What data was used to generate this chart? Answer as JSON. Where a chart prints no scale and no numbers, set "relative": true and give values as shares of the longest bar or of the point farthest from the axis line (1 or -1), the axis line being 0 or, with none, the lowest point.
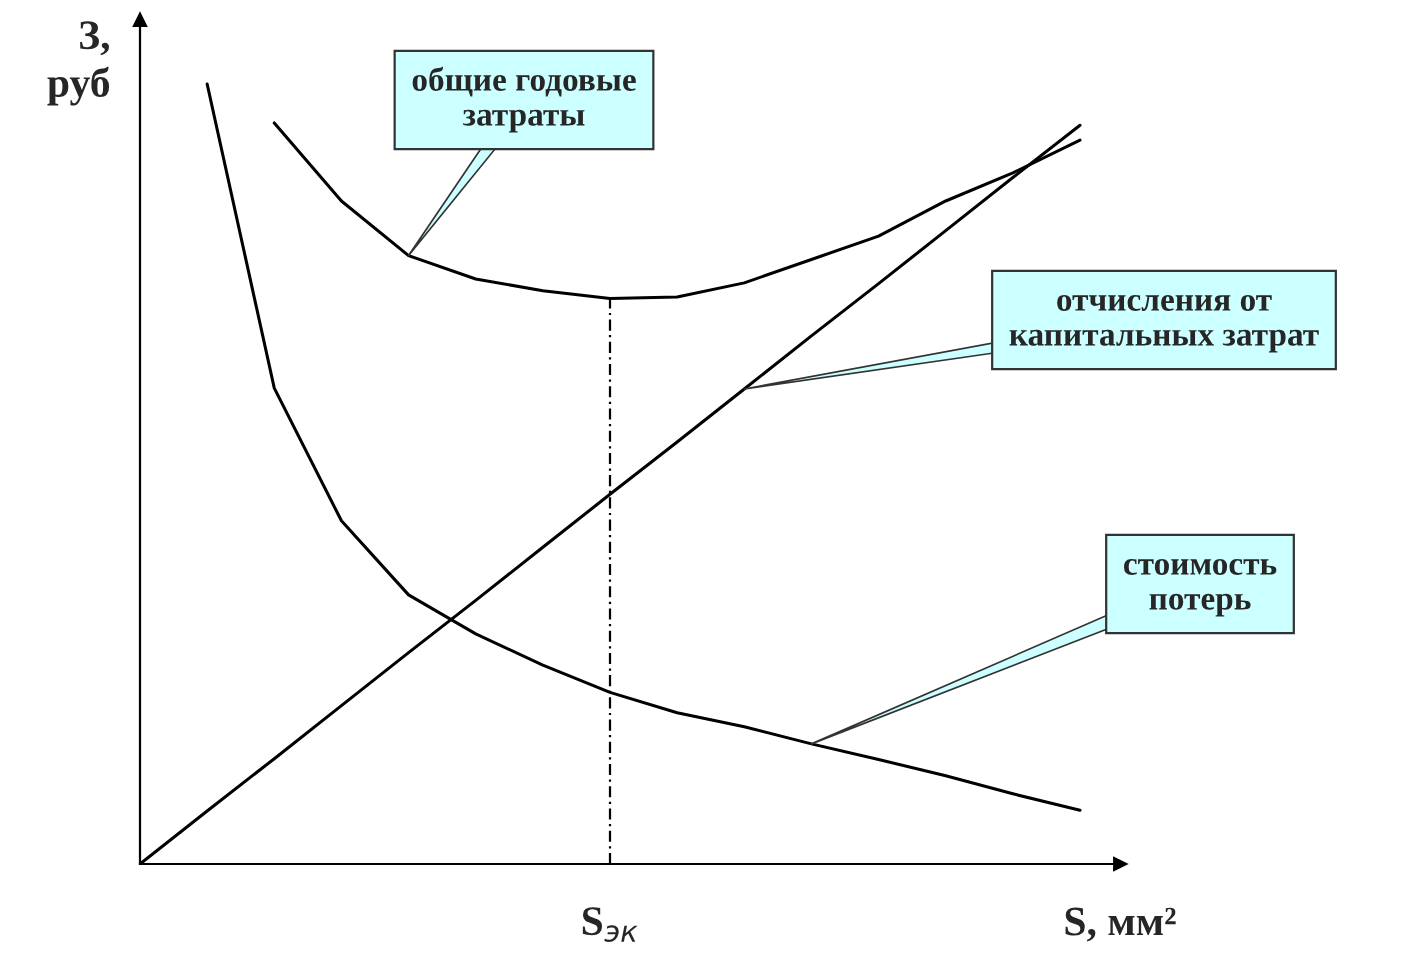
{
  "chart_data": {
    "type": "line",
    "relative": true,
    "xlabel": "S, мм²",
    "ylabel": "З,\nруб",
    "marker": "none",
    "line_style": "solid",
    "categories": [
      null,
      null,
      null,
      null,
      null,
      null,
      null,
      null,
      null,
      null,
      null,
      null,
      null,
      null,
      null
    ],
    "series": [
      {
        "color": "#000000",
        "values": [
          null,
          1.0,
          0.61,
          0.44,
          0.345,
          0.295,
          0.255,
          0.22,
          0.194,
          0.176,
          0.154,
          0.134,
          0.113,
          0.09,
          0.069
        ]
      },
      {
        "color": "#000000",
        "values": [
          0,
          0.068,
          0.135,
          0.203,
          0.271,
          0.338,
          0.406,
          0.474,
          0.541,
          0.609,
          0.677,
          0.744,
          0.812,
          0.88,
          0.947
        ]
      },
      {
        "color": "#000000",
        "values": [
          null,
          null,
          0.95,
          0.85,
          0.78,
          0.75,
          0.735,
          0.725,
          0.727,
          0.745,
          0.775,
          0.805,
          0.85,
          0.886,
          0.928
        ]
      }
    ],
    "annotations": [
      "общие годовые\nзатраты",
      "отчисления от\nкапитальных затрат",
      "стоимость\nпотерь",
      "S$_{эк}$"
    ]
  }
}
